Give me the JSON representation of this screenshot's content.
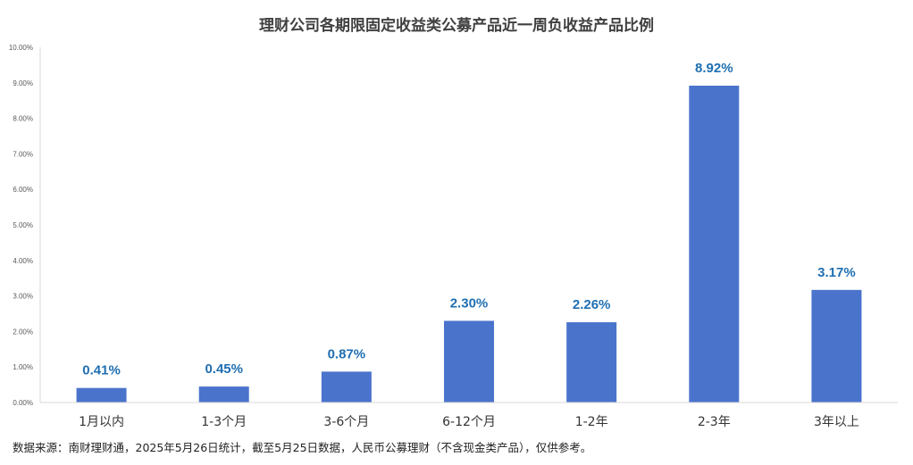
{
  "chart_data": {
    "type": "bar",
    "title": "理财公司各期限固定收益类公募产品近一周负收益产品比例",
    "categories": [
      "1月以内",
      "1-3个月",
      "3-6个月",
      "6-12个月",
      "1-2年",
      "2-3年",
      "3年以上"
    ],
    "values": [
      0.41,
      0.45,
      0.87,
      2.3,
      2.26,
      8.92,
      3.17
    ],
    "data_labels": [
      "0.41%",
      "0.45%",
      "0.87%",
      "2.30%",
      "2.26%",
      "8.92%",
      "3.17%"
    ],
    "ylim": [
      0,
      10
    ],
    "yticks": [
      0,
      1,
      2,
      3,
      4,
      5,
      6,
      7,
      8,
      9,
      10
    ],
    "ytick_labels": [
      "0.00%",
      "1.00%",
      "2.00%",
      "3.00%",
      "4.00%",
      "5.00%",
      "6.00%",
      "7.00%",
      "8.00%",
      "9.00%",
      "10.00%"
    ],
    "xlabel": "",
    "ylabel": "",
    "grid": false,
    "legend": "none",
    "bar_color": "#4a74cc",
    "label_color": "#1f6fb2"
  },
  "source_note": "数据来源：南财理财通，2025年5月26日统计，截至5月25日数据，人民币公募理财（不含现金类产品），仅供参考。"
}
